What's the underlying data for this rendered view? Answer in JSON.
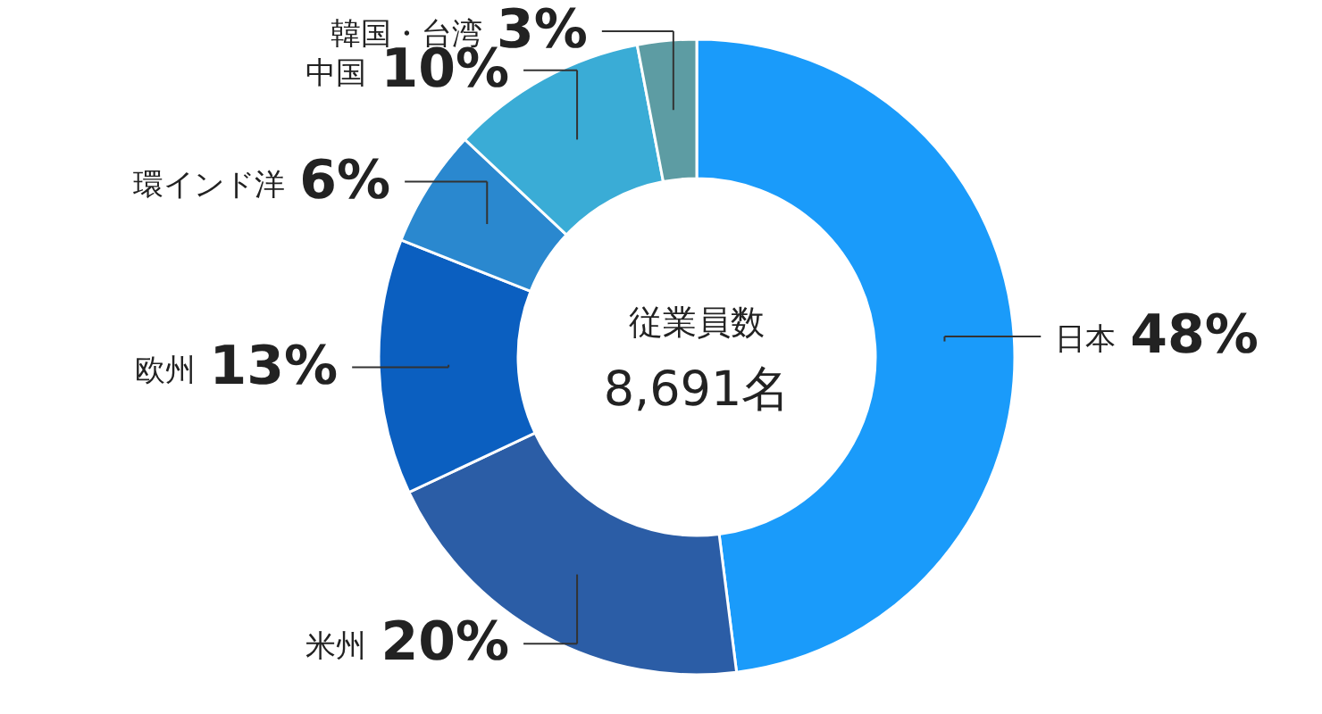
{
  "chart_data": {
    "type": "donut",
    "categories": [
      "日本",
      "米州",
      "欧州",
      "環インド洋",
      "中国",
      "韓国・台湾"
    ],
    "values": [
      48,
      20,
      13,
      6,
      10,
      3
    ],
    "colors": [
      "#1a9bfa",
      "#2b5da6",
      "#0b5fc0",
      "#2a88cf",
      "#3aacd6",
      "#5d9ca3"
    ],
    "value_labels": [
      "48%",
      "20%",
      "13%",
      "6%",
      "10%",
      "3%"
    ],
    "annotations": [
      "従業員数",
      "8,691名"
    ]
  }
}
